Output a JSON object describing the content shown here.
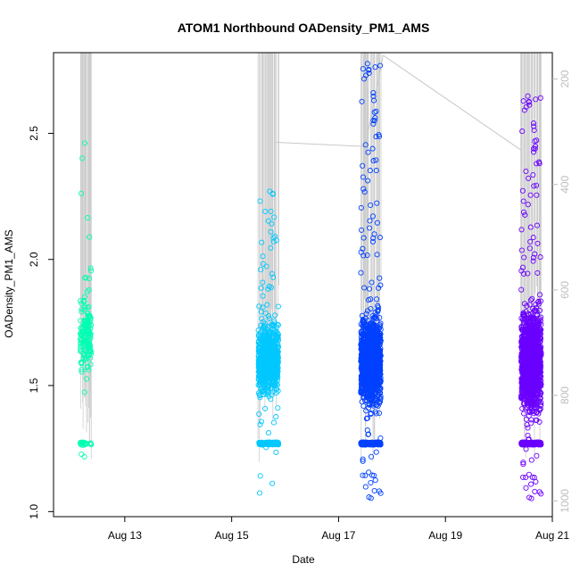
{
  "chart_data": {
    "type": "scatter",
    "title": "ATOM1 Northbound OADensity_PM1_AMS",
    "xlabel": "Date",
    "ylabel": "OADensity_PM1_AMS",
    "xlim": [
      "2013-08-11T16:00",
      "2013-08-21T00:00"
    ],
    "ylim": [
      0.98,
      2.82
    ],
    "y2lim": [
      1030,
      150
    ],
    "x_ticks": [
      {
        "label": "Aug 13",
        "date": "2013-08-13"
      },
      {
        "label": "Aug 15",
        "date": "2013-08-15"
      },
      {
        "label": "Aug 17",
        "date": "2013-08-17"
      },
      {
        "label": "Aug 19",
        "date": "2013-08-19"
      },
      {
        "label": "Aug 21",
        "date": "2013-08-21"
      }
    ],
    "y_ticks": [
      "1.0",
      "1.5",
      "2.0",
      "2.5"
    ],
    "y2_ticks": [
      "200",
      "400",
      "600",
      "800",
      "1000"
    ],
    "grid": false,
    "series": [
      {
        "color": "#00ffb3",
        "x_range": [
          "2013-08-12T04:00",
          "2013-08-12T09:00"
        ],
        "density_core": [
          1.45,
          1.95
        ],
        "extremes": [
          1.21,
          2.47
        ],
        "baseline": 1.27,
        "point_count": 180
      },
      {
        "color": "#00c8ff",
        "x_range": [
          "2013-08-15T12:00",
          "2013-08-15T21:00"
        ],
        "density_core": [
          1.35,
          1.85
        ],
        "extremes": [
          1.07,
          2.28
        ],
        "baseline": 1.27,
        "point_count": 900
      },
      {
        "color": "#0040ff",
        "x_range": [
          "2013-08-17T10:00",
          "2013-08-17T19:00"
        ],
        "density_core": [
          1.3,
          1.9
        ],
        "extremes": [
          1.04,
          2.79
        ],
        "baseline": 1.27,
        "point_count": 1500
      },
      {
        "color": "#6a00ff",
        "x_range": [
          "2013-08-20T10:00",
          "2013-08-20T19:00"
        ],
        "density_core": [
          1.25,
          1.95
        ],
        "extremes": [
          1.04,
          2.66
        ],
        "baseline": 1.27,
        "point_count": 1500
      }
    ],
    "altitude_trace": {
      "color": "#c8c8c8",
      "note_points": [
        {
          "date": "2013-08-15T20:00",
          "alt": 320
        },
        {
          "date": "2013-08-17T12:00",
          "alt": 328
        },
        {
          "date": "2013-08-17T20:00",
          "alt": 155
        },
        {
          "date": "2013-08-20T10:00",
          "alt": 335
        }
      ]
    }
  }
}
